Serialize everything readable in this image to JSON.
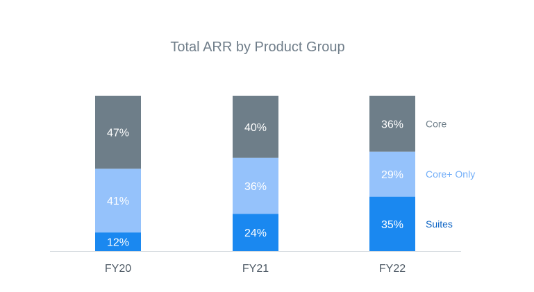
{
  "chart_data": {
    "type": "bar",
    "stacked": true,
    "percent": true,
    "title": "Total ARR by Product Group",
    "categories": [
      "FY20",
      "FY21",
      "FY22"
    ],
    "series": [
      {
        "name": "Suites",
        "values": [
          12,
          24,
          35
        ],
        "color": "#1a88f0",
        "label_color": "#0b63c4"
      },
      {
        "name": "Core+ Only",
        "values": [
          41,
          36,
          29
        ],
        "color": "#95c2fb",
        "label_color": "#72aef8"
      },
      {
        "name": "Core",
        "values": [
          47,
          40,
          36
        ],
        "color": "#6e7e89",
        "label_color": "#6e7e89"
      }
    ],
    "ylim": [
      0,
      100
    ],
    "legend": "right",
    "grid": false,
    "xlabel": "",
    "ylabel": ""
  }
}
